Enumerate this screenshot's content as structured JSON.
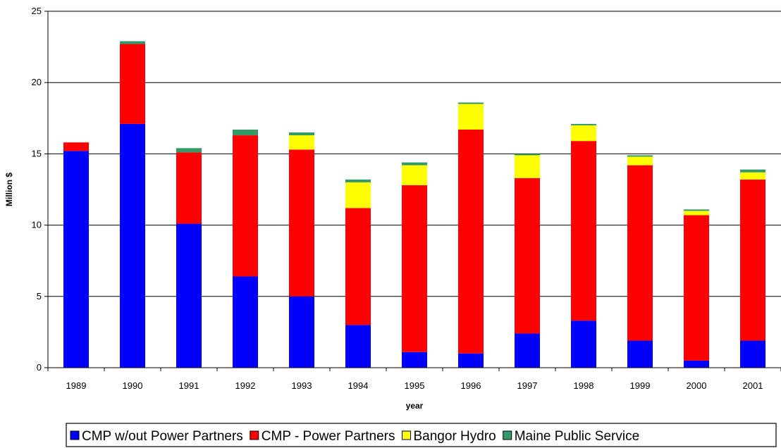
{
  "chart_data": {
    "type": "bar",
    "stacked": true,
    "categories": [
      "1989",
      "1990",
      "1991",
      "1992",
      "1993",
      "1994",
      "1995",
      "1996",
      "1997",
      "1998",
      "1999",
      "2000",
      "2001"
    ],
    "series": [
      {
        "name": "CMP w/out Power Partners",
        "color": "#0000ff",
        "values": [
          15.2,
          17.1,
          10.1,
          6.4,
          5.0,
          3.0,
          1.1,
          1.0,
          2.4,
          3.3,
          1.9,
          0.5,
          1.9
        ]
      },
      {
        "name": "CMP - Power Partners",
        "color": "#ff0000",
        "values": [
          0.6,
          5.6,
          5.0,
          9.9,
          10.3,
          8.2,
          11.7,
          15.7,
          10.9,
          12.6,
          12.3,
          10.2,
          11.3
        ]
      },
      {
        "name": "Bangor Hydro",
        "color": "#ffff00",
        "values": [
          0,
          0,
          0,
          0,
          1.0,
          1.8,
          1.4,
          1.8,
          1.6,
          1.1,
          0.6,
          0.3,
          0.5
        ]
      },
      {
        "name": "Maine Public Service",
        "color": "#339966",
        "values": [
          0,
          0.2,
          0.3,
          0.4,
          0.2,
          0.2,
          0.2,
          0.1,
          0.1,
          0.1,
          0.1,
          0.1,
          0.2
        ]
      }
    ],
    "xlabel": "year",
    "ylabel": "Million $",
    "ylim": [
      0,
      25
    ],
    "yticks": [
      0,
      5,
      10,
      15,
      20,
      25
    ],
    "grid": true,
    "legend_position": "bottom"
  }
}
